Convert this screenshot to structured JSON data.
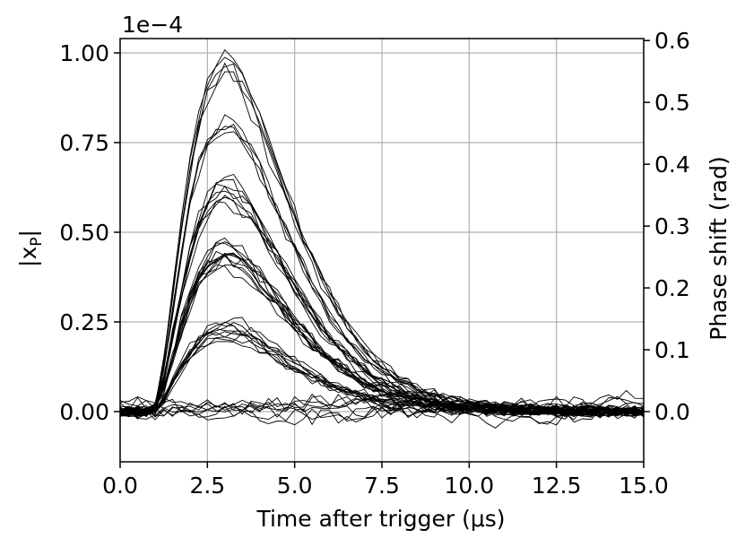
{
  "chart_data": {
    "type": "line",
    "title": "",
    "xlabel": "Time after trigger (μs)",
    "ylabel_left": "|x_P|",
    "ylabel_left_sub": "P",
    "ylabel_right": "Phase shift (rad)",
    "offset_text": "1e−4",
    "offset_scale": 0.0001,
    "xlim": [
      0,
      15
    ],
    "ylim_left": [
      -0.14,
      1.04
    ],
    "ylim_right": [
      -0.0812,
      0.6032
    ],
    "grid": true,
    "legend": "none",
    "line_color": "#000000",
    "x_ticks": [
      0,
      2.5,
      5,
      7.5,
      10,
      12.5,
      15
    ],
    "x_tick_labels": [
      "0.0",
      "2.5",
      "5.0",
      "7.5",
      "10.0",
      "12.5",
      "15.0"
    ],
    "y_left_ticks": [
      0,
      0.25,
      0.5,
      0.75,
      1.0
    ],
    "y_left_tick_labels": [
      "0.00",
      "0.25",
      "0.50",
      "0.75",
      "1.00"
    ],
    "y_right_ticks": [
      0,
      0.1,
      0.2,
      0.3,
      0.4,
      0.5,
      0.6
    ],
    "y_right_tick_labels": [
      "0.0",
      "0.1",
      "0.2",
      "0.3",
      "0.4",
      "0.5",
      "0.6"
    ],
    "x_step": 0.25,
    "series": [
      {
        "peak": 0.985
      },
      {
        "peak": 0.975
      },
      {
        "peak": 0.955
      },
      {
        "peak": 0.94
      },
      {
        "peak": 0.935
      },
      {
        "peak": 0.815
      },
      {
        "peak": 0.81
      },
      {
        "peak": 0.8
      },
      {
        "peak": 0.79
      },
      {
        "peak": 0.645
      },
      {
        "peak": 0.635
      },
      {
        "peak": 0.625
      },
      {
        "peak": 0.615
      },
      {
        "peak": 0.61
      },
      {
        "peak": 0.6
      },
      {
        "peak": 0.59
      },
      {
        "peak": 0.575
      },
      {
        "peak": 0.475
      },
      {
        "peak": 0.465
      },
      {
        "peak": 0.455
      },
      {
        "peak": 0.45
      },
      {
        "peak": 0.445
      },
      {
        "peak": 0.44
      },
      {
        "peak": 0.435
      },
      {
        "peak": 0.43
      },
      {
        "peak": 0.425
      },
      {
        "peak": 0.42
      },
      {
        "peak": 0.41
      },
      {
        "peak": 0.4
      },
      {
        "peak": 0.255
      },
      {
        "peak": 0.245
      },
      {
        "peak": 0.24
      },
      {
        "peak": 0.235
      },
      {
        "peak": 0.23
      },
      {
        "peak": 0.225
      },
      {
        "peak": 0.22
      },
      {
        "peak": 0.215
      },
      {
        "peak": 0.21
      },
      {
        "peak": 0.205
      },
      {
        "peak": 0.04
      },
      {
        "peak": 0.03
      },
      {
        "peak": 0.02
      },
      {
        "peak": 0.01
      },
      {
        "peak": 0.0
      },
      {
        "peak": -0.01
      },
      {
        "peak": -0.02
      },
      {
        "peak": 0.025
      }
    ]
  }
}
